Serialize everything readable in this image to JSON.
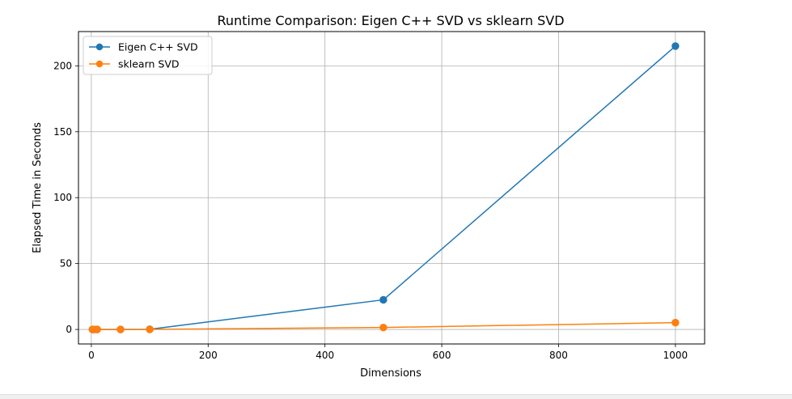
{
  "chart_data": {
    "type": "line",
    "title": "Runtime Comparison: Eigen C++ SVD vs sklearn SVD",
    "xlabel": "Dimensions",
    "ylabel": "Elapsed Time in Seconds",
    "xlim": [
      -22,
      1050
    ],
    "ylim": [
      -11,
      226
    ],
    "xticks": [
      0,
      200,
      400,
      600,
      800,
      1000
    ],
    "yticks": [
      0,
      50,
      100,
      150,
      200
    ],
    "grid": true,
    "legend_position": "top-left",
    "series": [
      {
        "name": "Eigen C++ SVD",
        "color": "#1f77b4",
        "x": [
          2,
          5,
          10,
          50,
          100,
          500,
          1000
        ],
        "y": [
          0.0,
          0.0,
          0.0,
          0.02,
          0.15,
          22.5,
          215.0
        ]
      },
      {
        "name": "sklearn SVD",
        "color": "#ff7f0e",
        "x": [
          2,
          5,
          10,
          50,
          100,
          500,
          1000
        ],
        "y": [
          0.0,
          0.0,
          0.0,
          0.01,
          0.05,
          1.5,
          5.2
        ]
      }
    ]
  }
}
